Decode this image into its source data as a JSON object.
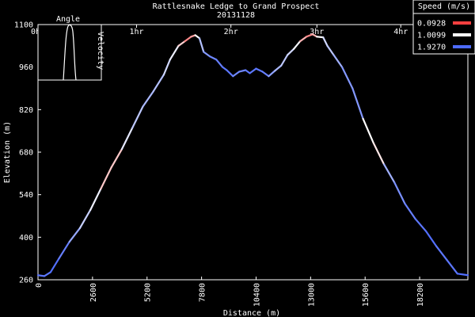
{
  "chart_data": {
    "type": "line",
    "title": "Rattlesnake Ledge to Grand Prospect",
    "subtitle": "20131128",
    "xlabel": "Distance (m)",
    "ylabel": "Elevation (m)",
    "xlim": [
      0,
      20500
    ],
    "ylim": [
      260,
      1100
    ],
    "x_ticks": [
      "0",
      "2600",
      "5200",
      "7800",
      "10400",
      "13000",
      "15600",
      "18200"
    ],
    "y_ticks": [
      "260",
      "400",
      "540",
      "680",
      "820",
      "960",
      "1100"
    ],
    "time_ticks": [
      {
        "label": "0hr",
        "x": 0
      },
      {
        "label": "1hr",
        "x": 4700
      },
      {
        "label": "2hr",
        "x": 9200
      },
      {
        "label": "3hr",
        "x": 13300
      },
      {
        "label": "4hr",
        "x": 17300
      }
    ],
    "grid": false,
    "legend": {
      "title": "Speed (m/s)",
      "position": "top-right",
      "entries": [
        {
          "label": "0.0928",
          "color": "#ff4040"
        },
        {
          "label": "1.0099",
          "color": "#ffffff"
        },
        {
          "label": "1.9270",
          "color": "#4d6bff"
        }
      ]
    },
    "inset": {
      "title": "Angle",
      "ylabel": "Velocity",
      "position": "top-left"
    },
    "series": [
      {
        "color_by": "speed",
        "x": [
          0,
          300,
          600,
          1000,
          1500,
          2000,
          2500,
          3000,
          3500,
          4000,
          4500,
          5000,
          5500,
          6000,
          6300,
          6700,
          7000,
          7300,
          7500,
          7700,
          7900,
          8200,
          8500,
          8800,
          9000,
          9300,
          9600,
          9900,
          10100,
          10400,
          10700,
          11000,
          11300,
          11600,
          11900,
          12200,
          12500,
          12800,
          13100,
          13300,
          13600,
          13800,
          14100,
          14500,
          15000,
          15500,
          16000,
          16500,
          17000,
          17500,
          18000,
          18500,
          19000,
          19500,
          20000,
          20500
        ],
        "y": [
          275,
          272,
          285,
          330,
          385,
          430,
          490,
          560,
          630,
          690,
          760,
          830,
          880,
          935,
          985,
          1030,
          1045,
          1060,
          1065,
          1055,
          1010,
          995,
          985,
          960,
          950,
          930,
          945,
          950,
          940,
          955,
          945,
          930,
          948,
          965,
          1000,
          1020,
          1045,
          1060,
          1068,
          1060,
          1058,
          1030,
          1000,
          960,
          890,
          790,
          710,
          640,
          580,
          510,
          460,
          420,
          370,
          325,
          280,
          275
        ],
        "speed": [
          1.9,
          1.8,
          1.9,
          1.9,
          1.7,
          1.4,
          1.2,
          1.0,
          0.5,
          1.0,
          1.3,
          1.4,
          1.5,
          1.3,
          1.2,
          1.0,
          0.6,
          0.3,
          0.8,
          1.2,
          1.6,
          1.7,
          1.8,
          1.8,
          1.9,
          1.8,
          1.7,
          1.8,
          1.9,
          1.8,
          1.9,
          1.7,
          1.5,
          1.4,
          1.3,
          1.2,
          0.9,
          0.4,
          0.5,
          0.8,
          1.2,
          1.3,
          1.4,
          1.6,
          1.7,
          1.6,
          0.4,
          1.4,
          1.6,
          1.8,
          1.8,
          1.9,
          1.9,
          1.8,
          1.9,
          1.9
        ]
      }
    ]
  }
}
